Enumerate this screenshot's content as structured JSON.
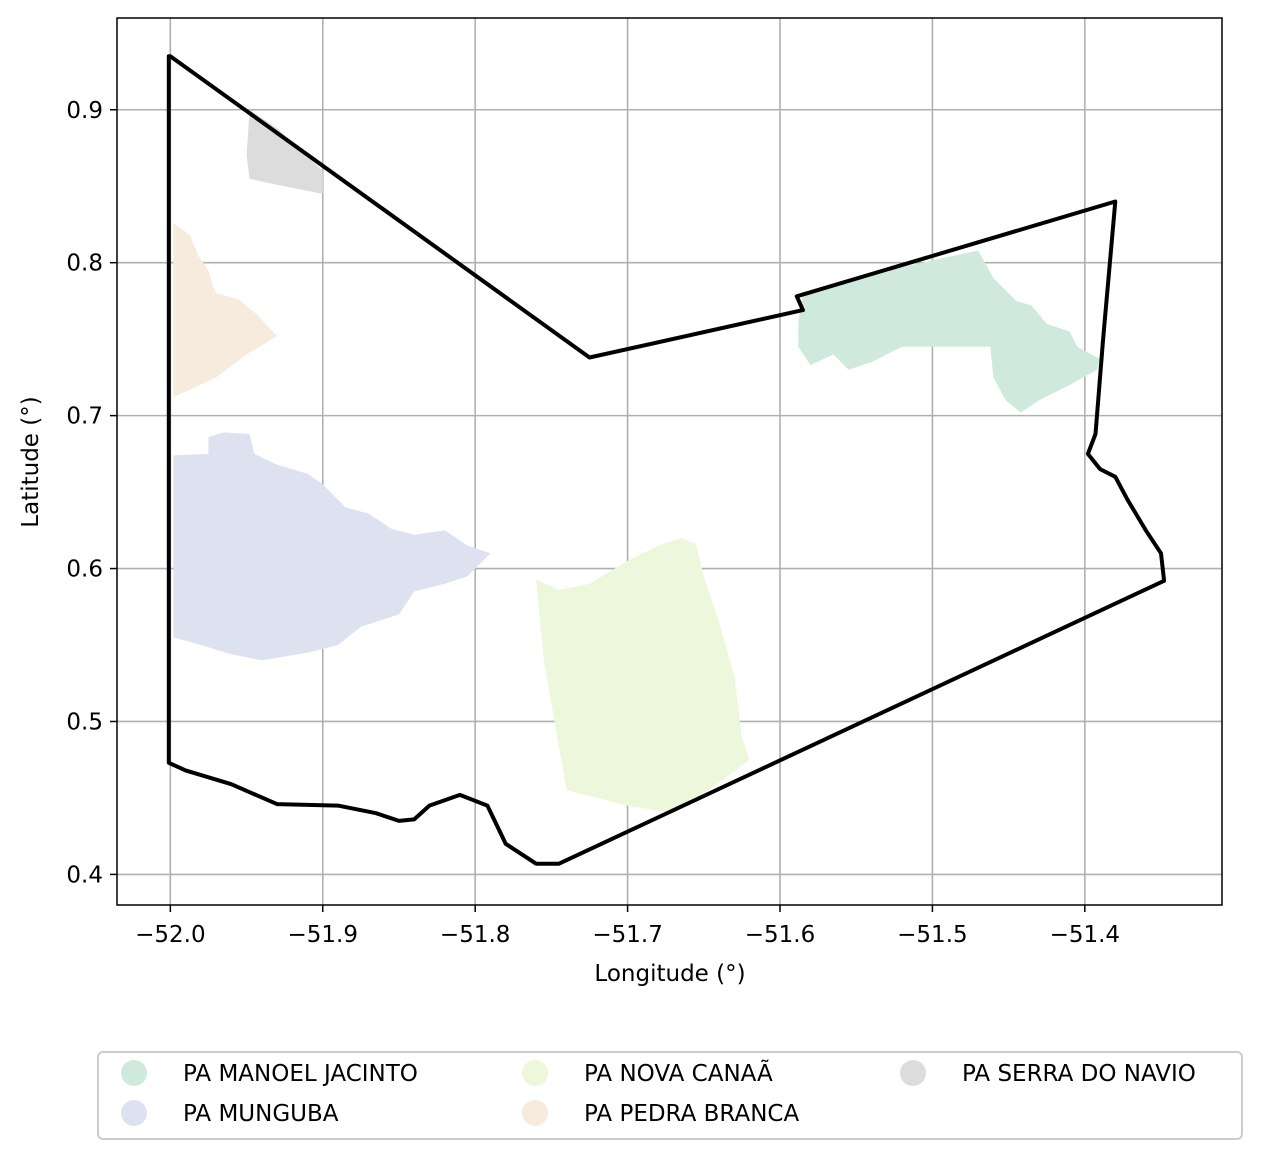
{
  "chart_data": {
    "type": "map",
    "xlabel": "Longitude (°)",
    "ylabel": "Latitude (°)",
    "xlim": [
      -52.035,
      -51.31
    ],
    "ylim": [
      0.38,
      0.96
    ],
    "x_ticks": [
      -52.0,
      -51.9,
      -51.8,
      -51.7,
      -51.6,
      -51.5,
      -51.4
    ],
    "x_tick_labels": [
      "−52.0",
      "−51.9",
      "−51.8",
      "−51.7",
      "−51.6",
      "−51.5",
      "−51.4"
    ],
    "y_ticks": [
      0.4,
      0.5,
      0.6,
      0.7,
      0.8,
      0.9
    ],
    "y_tick_labels": [
      "0.4",
      "0.5",
      "0.6",
      "0.7",
      "0.8",
      "0.9"
    ],
    "grid": true,
    "legend_position": "bottom-center",
    "legend": [
      {
        "label": "PA MANOEL JACINTO",
        "color": "#cfeadd"
      },
      {
        "label": "PA MUNGUBA",
        "color": "#dee2f0"
      },
      {
        "label": "PA NOVA CANAÃ",
        "color": "#edf7dc"
      },
      {
        "label": "PA PEDRA BRANCA",
        "color": "#f6ebdc"
      },
      {
        "label": "PA SERRA DO NAVIO",
        "color": "#dcdcdc"
      }
    ],
    "boundary_color": "#000000",
    "areas": [
      {
        "name": "PA MANOEL JACINTO",
        "color": "#cfeadd",
        "polygon": [
          [
            -51.585,
            0.778
          ],
          [
            -51.53,
            0.795
          ],
          [
            -51.47,
            0.808
          ],
          [
            -51.46,
            0.79
          ],
          [
            -51.445,
            0.775
          ],
          [
            -51.435,
            0.772
          ],
          [
            -51.425,
            0.76
          ],
          [
            -51.41,
            0.755
          ],
          [
            -51.405,
            0.745
          ],
          [
            -51.39,
            0.737
          ],
          [
            -51.392,
            0.73
          ],
          [
            -51.41,
            0.72
          ],
          [
            -51.43,
            0.71
          ],
          [
            -51.442,
            0.702
          ],
          [
            -51.452,
            0.71
          ],
          [
            -51.46,
            0.725
          ],
          [
            -51.462,
            0.745
          ],
          [
            -51.52,
            0.745
          ],
          [
            -51.54,
            0.735
          ],
          [
            -51.555,
            0.73
          ],
          [
            -51.565,
            0.74
          ],
          [
            -51.58,
            0.733
          ],
          [
            -51.588,
            0.745
          ],
          [
            -51.588,
            0.762
          ]
        ]
      },
      {
        "name": "PA MUNGUBA",
        "color": "#dee2f0",
        "polygon": [
          [
            -51.998,
            0.674
          ],
          [
            -51.975,
            0.675
          ],
          [
            -51.975,
            0.686
          ],
          [
            -51.965,
            0.689
          ],
          [
            -51.948,
            0.688
          ],
          [
            -51.945,
            0.675
          ],
          [
            -51.93,
            0.668
          ],
          [
            -51.91,
            0.662
          ],
          [
            -51.9,
            0.655
          ],
          [
            -51.885,
            0.64
          ],
          [
            -51.87,
            0.636
          ],
          [
            -51.855,
            0.626
          ],
          [
            -51.84,
            0.622
          ],
          [
            -51.82,
            0.625
          ],
          [
            -51.805,
            0.615
          ],
          [
            -51.79,
            0.61
          ],
          [
            -51.805,
            0.595
          ],
          [
            -51.82,
            0.59
          ],
          [
            -51.84,
            0.585
          ],
          [
            -51.85,
            0.57
          ],
          [
            -51.875,
            0.562
          ],
          [
            -51.89,
            0.55
          ],
          [
            -51.91,
            0.545
          ],
          [
            -51.94,
            0.54
          ],
          [
            -51.96,
            0.544
          ],
          [
            -51.98,
            0.55
          ],
          [
            -51.998,
            0.555
          ]
        ]
      },
      {
        "name": "PA NOVA CANAÃ",
        "color": "#edf7dc",
        "polygon": [
          [
            -51.76,
            0.593
          ],
          [
            -51.745,
            0.586
          ],
          [
            -51.725,
            0.59
          ],
          [
            -51.7,
            0.605
          ],
          [
            -51.68,
            0.615
          ],
          [
            -51.665,
            0.62
          ],
          [
            -51.655,
            0.616
          ],
          [
            -51.65,
            0.595
          ],
          [
            -51.64,
            0.565
          ],
          [
            -51.63,
            0.53
          ],
          [
            -51.625,
            0.49
          ],
          [
            -51.62,
            0.475
          ],
          [
            -51.64,
            0.46
          ],
          [
            -51.67,
            0.44
          ],
          [
            -51.7,
            0.445
          ],
          [
            -51.74,
            0.455
          ],
          [
            -51.755,
            0.54
          ]
        ]
      },
      {
        "name": "PA PEDRA BRANCA",
        "color": "#f6ebdc",
        "polygon": [
          [
            -51.998,
            0.826
          ],
          [
            -51.987,
            0.818
          ],
          [
            -51.982,
            0.805
          ],
          [
            -51.975,
            0.795
          ],
          [
            -51.972,
            0.785
          ],
          [
            -51.97,
            0.78
          ],
          [
            -51.955,
            0.776
          ],
          [
            -51.943,
            0.766
          ],
          [
            -51.93,
            0.752
          ],
          [
            -51.95,
            0.74
          ],
          [
            -51.97,
            0.725
          ],
          [
            -51.998,
            0.712
          ]
        ]
      },
      {
        "name": "PA SERRA DO NAVIO",
        "color": "#dcdcdc",
        "polygon": [
          [
            -51.948,
            0.9
          ],
          [
            -51.93,
            0.888
          ],
          [
            -51.9,
            0.86
          ],
          [
            -51.9,
            0.845
          ],
          [
            -51.935,
            0.852
          ],
          [
            -51.948,
            0.855
          ],
          [
            -51.95,
            0.87
          ]
        ]
      }
    ],
    "boundary": [
      [
        -52.0,
        0.935
      ],
      [
        -51.725,
        0.738
      ],
      [
        -51.585,
        0.769
      ],
      [
        -51.589,
        0.778
      ],
      [
        -51.38,
        0.84
      ],
      [
        -51.388,
        0.75
      ],
      [
        -51.393,
        0.688
      ],
      [
        -51.398,
        0.675
      ],
      [
        -51.39,
        0.665
      ],
      [
        -51.38,
        0.66
      ],
      [
        -51.372,
        0.645
      ],
      [
        -51.36,
        0.625
      ],
      [
        -51.35,
        0.61
      ],
      [
        -51.348,
        0.592
      ],
      [
        -51.745,
        0.407
      ],
      [
        -51.76,
        0.407
      ],
      [
        -51.78,
        0.42
      ],
      [
        -51.792,
        0.445
      ],
      [
        -51.81,
        0.452
      ],
      [
        -51.83,
        0.445
      ],
      [
        -51.84,
        0.436
      ],
      [
        -51.85,
        0.435
      ],
      [
        -51.865,
        0.44
      ],
      [
        -51.89,
        0.445
      ],
      [
        -51.93,
        0.446
      ],
      [
        -51.96,
        0.459
      ],
      [
        -51.99,
        0.468
      ],
      [
        -52.001,
        0.473
      ],
      [
        -52.001,
        0.935
      ]
    ]
  }
}
